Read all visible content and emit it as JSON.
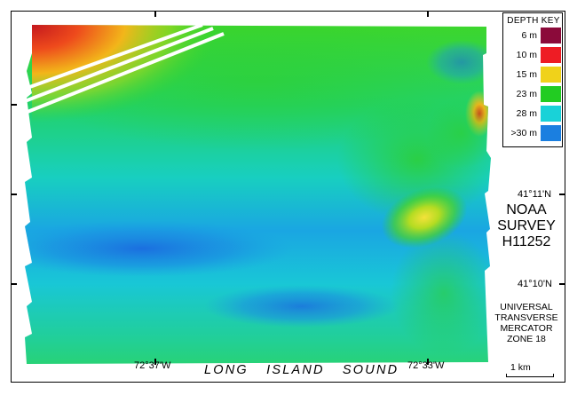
{
  "legend": {
    "title": "DEPTH  KEY",
    "entries": [
      {
        "label": "6 m",
        "color": "#8b0a3a"
      },
      {
        "label": "10 m",
        "color": "#ee1c24"
      },
      {
        "label": "15 m",
        "color": "#f0d21a"
      },
      {
        "label": "23 m",
        "color": "#22cc22"
      },
      {
        "label": "28 m",
        "color": "#19d2d8"
      },
      {
        "label": ">30 m",
        "color": "#1b7fe0"
      }
    ]
  },
  "coordinates": {
    "lat_upper": "41°11'N",
    "lat_lower": "41°10'N",
    "lon_left": "72°37'W",
    "lon_right": "72°33'W"
  },
  "survey": {
    "line1": "NOAA",
    "line2": "SURVEY",
    "line3": "H11252"
  },
  "projection": {
    "line1": "UNIVERSAL",
    "line2": "TRANSVERSE",
    "line3": "MERCATOR",
    "line4": "ZONE 18"
  },
  "water_body_label": "LONG  ISLAND  SOUND",
  "scale_bar_label": "1 km"
}
